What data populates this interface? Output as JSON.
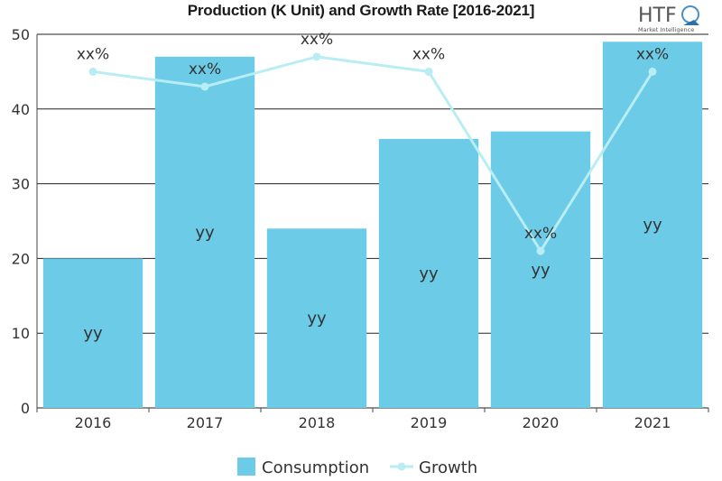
{
  "title": "Production (K Unit) and Growth Rate [2016-2021]",
  "logo": {
    "text": "HTF",
    "subtitle": "Market Intelligence"
  },
  "colors": {
    "bar": "#6ccbe6",
    "line": "#b8edf4",
    "axis": "#444444",
    "grid": "#222222",
    "text": "#333333"
  },
  "chart_data": {
    "type": "bar",
    "title": "Production (K Unit) and Growth Rate [2016-2021]",
    "categories": [
      "2016",
      "2017",
      "2018",
      "2019",
      "2020",
      "2021"
    ],
    "ylim": [
      0,
      50
    ],
    "yticks": [
      0,
      10,
      20,
      30,
      40,
      50
    ],
    "grid": "horizontal",
    "legend_position": "bottom-center",
    "series": [
      {
        "name": "Consumption",
        "type": "bar",
        "values": [
          20,
          47,
          24,
          36,
          37,
          49
        ],
        "labels": [
          "yy",
          "yy",
          "yy",
          "yy",
          "yy",
          "yy"
        ]
      },
      {
        "name": "Growth",
        "type": "line",
        "values": [
          45,
          43,
          47,
          45,
          21,
          45
        ],
        "labels": [
          "xx%",
          "xx%",
          "xx%",
          "xx%",
          "xx%",
          "xx%"
        ]
      }
    ]
  }
}
